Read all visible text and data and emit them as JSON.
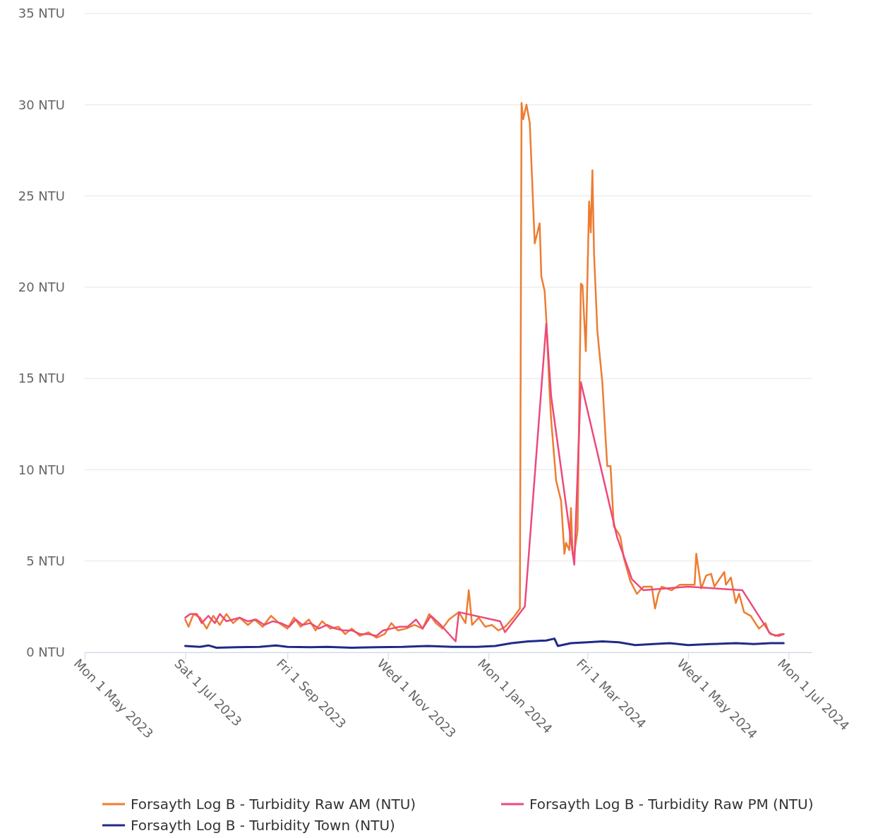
{
  "chart_data": {
    "type": "line",
    "xlim": [
      "2023-05-01",
      "2024-07-15"
    ],
    "xticks": [
      {
        "value": "2023-05-01",
        "label": "Mon 1 May 2023"
      },
      {
        "value": "2023-07-01",
        "label": "Sat 1 Jul 2023"
      },
      {
        "value": "2023-09-01",
        "label": "Fri 1 Sep 2023"
      },
      {
        "value": "2023-11-01",
        "label": "Wed 1 Nov 2023"
      },
      {
        "value": "2024-01-01",
        "label": "Mon 1 Jan 2024"
      },
      {
        "value": "2024-03-01",
        "label": "Fri 1 Mar 2024"
      },
      {
        "value": "2024-05-01",
        "label": "Wed 1 May 2024"
      },
      {
        "value": "2024-07-01",
        "label": "Mon 1 Jul 2024"
      }
    ],
    "ylim": [
      0,
      35
    ],
    "yticks": [
      {
        "value": 0,
        "label": "0 NTU"
      },
      {
        "value": 5,
        "label": "5 NTU"
      },
      {
        "value": 10,
        "label": "10 NTU"
      },
      {
        "value": 15,
        "label": "15 NTU"
      },
      {
        "value": 20,
        "label": "20 NTU"
      },
      {
        "value": 25,
        "label": "25 NTU"
      },
      {
        "value": 30,
        "label": "30 NTU"
      },
      {
        "value": 35,
        "label": "35 NTU"
      }
    ],
    "grid": "y",
    "legend": "bottom",
    "series": [
      {
        "name": "Forsayth Log B - Turbidity Raw AM (NTU)",
        "color": "#ed7d31",
        "x": [
          "2023-07-01",
          "2023-07-03",
          "2023-07-06",
          "2023-07-10",
          "2023-07-14",
          "2023-07-18",
          "2023-07-22",
          "2023-07-26",
          "2023-07-30",
          "2023-08-03",
          "2023-08-08",
          "2023-08-12",
          "2023-08-17",
          "2023-08-22",
          "2023-08-27",
          "2023-09-01",
          "2023-09-05",
          "2023-09-09",
          "2023-09-14",
          "2023-09-18",
          "2023-09-22",
          "2023-09-27",
          "2023-10-02",
          "2023-10-06",
          "2023-10-10",
          "2023-10-15",
          "2023-10-20",
          "2023-10-25",
          "2023-10-30",
          "2023-11-03",
          "2023-11-07",
          "2023-11-12",
          "2023-11-17",
          "2023-11-22",
          "2023-11-26",
          "2023-11-30",
          "2023-12-04",
          "2023-12-08",
          "2023-12-14",
          "2023-12-18",
          "2023-12-20",
          "2023-12-22",
          "2023-12-26",
          "2023-12-30",
          "2024-01-03",
          "2024-01-07",
          "2024-01-11",
          "2024-01-16",
          "2024-01-20",
          "2024-01-21",
          "2024-01-22",
          "2024-01-24",
          "2024-01-26",
          "2024-01-29",
          "2024-02-01",
          "2024-02-02",
          "2024-02-04",
          "2024-02-05",
          "2024-02-07",
          "2024-02-08",
          "2024-02-11",
          "2024-02-14",
          "2024-02-16",
          "2024-02-17",
          "2024-02-19",
          "2024-02-20",
          "2024-02-21",
          "2024-02-22",
          "2024-02-24",
          "2024-02-26",
          "2024-02-27",
          "2024-02-29",
          "2024-03-02",
          "2024-03-03",
          "2024-03-04",
          "2024-03-05",
          "2024-03-07",
          "2024-03-10",
          "2024-03-13",
          "2024-03-15",
          "2024-03-17",
          "2024-03-20",
          "2024-03-21",
          "2024-03-23",
          "2024-03-27",
          "2024-03-31",
          "2024-04-04",
          "2024-04-09",
          "2024-04-11",
          "2024-04-13",
          "2024-04-15",
          "2024-04-21",
          "2024-04-26",
          "2024-05-05",
          "2024-05-06",
          "2024-05-09",
          "2024-05-12",
          "2024-05-15",
          "2024-05-17",
          "2024-05-20",
          "2024-05-23",
          "2024-05-24",
          "2024-05-27",
          "2024-05-30",
          "2024-06-01",
          "2024-06-04",
          "2024-06-08",
          "2024-06-13",
          "2024-06-17",
          "2024-06-19",
          "2024-06-23",
          "2024-06-26",
          "2024-06-28"
        ],
        "values": [
          1.8,
          1.4,
          2.1,
          1.9,
          1.3,
          2.0,
          1.5,
          2.1,
          1.6,
          1.9,
          1.5,
          1.8,
          1.4,
          2.0,
          1.6,
          1.3,
          1.9,
          1.4,
          1.8,
          1.2,
          1.7,
          1.3,
          1.4,
          1.0,
          1.3,
          0.9,
          1.1,
          0.8,
          1.0,
          1.6,
          1.2,
          1.3,
          1.5,
          1.3,
          2.1,
          1.6,
          1.3,
          1.8,
          2.2,
          1.6,
          3.4,
          1.5,
          1.9,
          1.4,
          1.5,
          1.2,
          1.4,
          1.9,
          2.4,
          30.1,
          29.2,
          30.0,
          29.0,
          22.4,
          23.5,
          20.6,
          19.8,
          18.3,
          14.3,
          12.7,
          9.4,
          8.3,
          5.4,
          6.0,
          5.6,
          7.9,
          5.4,
          5.4,
          6.7,
          20.2,
          20.1,
          16.5,
          24.7,
          23.0,
          26.4,
          21.8,
          17.6,
          14.8,
          10.2,
          10.2,
          6.9,
          6.5,
          6.3,
          5.2,
          3.9,
          3.2,
          3.6,
          3.6,
          2.4,
          3.2,
          3.6,
          3.4,
          3.7,
          3.7,
          5.4,
          3.5,
          4.2,
          4.3,
          3.6,
          4.0,
          4.4,
          3.7,
          4.1,
          2.7,
          3.2,
          2.2,
          2.0,
          1.3,
          1.6,
          1.1,
          0.9,
          1.0,
          1.0
        ]
      },
      {
        "name": "Forsayth Log B - Turbidity Raw PM (NTU)",
        "color": "#ec4a7a",
        "x": [
          "2023-07-01",
          "2023-07-04",
          "2023-07-08",
          "2023-07-11",
          "2023-07-15",
          "2023-07-19",
          "2023-07-22",
          "2023-07-26",
          "2023-07-30",
          "2023-08-03",
          "2023-08-08",
          "2023-08-13",
          "2023-08-18",
          "2023-08-23",
          "2023-08-28",
          "2023-09-02",
          "2023-09-06",
          "2023-09-10",
          "2023-09-15",
          "2023-09-20",
          "2023-09-25",
          "2023-09-30",
          "2023-10-05",
          "2023-10-10",
          "2023-10-15",
          "2023-10-20",
          "2023-10-25",
          "2023-10-29",
          "2023-11-03",
          "2023-11-08",
          "2023-11-13",
          "2023-11-18",
          "2023-11-22",
          "2023-11-27",
          "2023-12-03",
          "2023-12-12",
          "2023-12-14",
          "2024-01-08",
          "2024-01-11",
          "2024-01-23",
          "2024-02-05",
          "2024-02-08",
          "2024-02-22",
          "2024-02-26",
          "2024-03-19",
          "2024-03-28",
          "2024-04-04",
          "2024-05-01",
          "2024-06-03",
          "2024-06-20",
          "2024-06-25",
          "2024-06-28"
        ],
        "values": [
          1.9,
          2.1,
          2.1,
          1.6,
          2.0,
          1.6,
          2.1,
          1.7,
          1.8,
          1.9,
          1.7,
          1.8,
          1.5,
          1.7,
          1.6,
          1.4,
          1.8,
          1.5,
          1.6,
          1.3,
          1.5,
          1.3,
          1.2,
          1.2,
          1.0,
          1.0,
          0.9,
          1.2,
          1.3,
          1.4,
          1.4,
          1.8,
          1.3,
          2.0,
          1.5,
          0.6,
          2.2,
          1.7,
          1.1,
          2.5,
          18.0,
          14.0,
          4.8,
          14.8,
          6.3,
          4.0,
          3.4,
          3.6,
          3.4,
          1.0,
          0.9,
          1.0
        ]
      },
      {
        "name": "Forsayth Log B - Turbidity Town (NTU)",
        "color": "#1f2a8a",
        "x": [
          "2023-07-01",
          "2023-07-10",
          "2023-07-15",
          "2023-07-20",
          "2023-08-01",
          "2023-08-15",
          "2023-08-25",
          "2023-09-01",
          "2023-09-15",
          "2023-09-25",
          "2023-10-10",
          "2023-10-25",
          "2023-11-10",
          "2023-11-25",
          "2023-12-10",
          "2023-12-25",
          "2024-01-05",
          "2024-01-15",
          "2024-01-25",
          "2024-02-05",
          "2024-02-10",
          "2024-02-12",
          "2024-02-20",
          "2024-03-01",
          "2024-03-10",
          "2024-03-20",
          "2024-03-30",
          "2024-04-10",
          "2024-04-20",
          "2024-05-01",
          "2024-05-15",
          "2024-05-30",
          "2024-06-10",
          "2024-06-20",
          "2024-06-28"
        ],
        "values": [
          0.35,
          0.3,
          0.38,
          0.25,
          0.28,
          0.3,
          0.38,
          0.3,
          0.28,
          0.3,
          0.25,
          0.28,
          0.3,
          0.35,
          0.3,
          0.3,
          0.35,
          0.5,
          0.6,
          0.65,
          0.75,
          0.35,
          0.5,
          0.55,
          0.6,
          0.55,
          0.4,
          0.45,
          0.5,
          0.4,
          0.45,
          0.5,
          0.45,
          0.5,
          0.5
        ]
      }
    ]
  }
}
